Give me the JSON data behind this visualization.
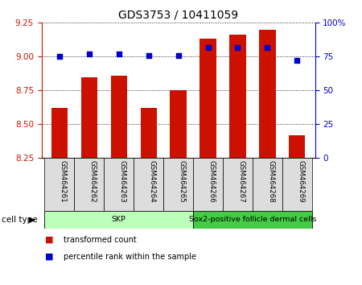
{
  "title": "GDS3753 / 10411059",
  "samples": [
    "GSM464261",
    "GSM464262",
    "GSM464263",
    "GSM464264",
    "GSM464265",
    "GSM464266",
    "GSM464267",
    "GSM464268",
    "GSM464269"
  ],
  "transformed_count": [
    8.62,
    8.85,
    8.86,
    8.62,
    8.75,
    9.13,
    9.16,
    9.2,
    8.42
  ],
  "percentile_rank": [
    75,
    77,
    77,
    76,
    76,
    82,
    82,
    82,
    72
  ],
  "ylim_left": [
    8.25,
    9.25
  ],
  "ylim_right": [
    0,
    100
  ],
  "yticks_left": [
    8.25,
    8.5,
    8.75,
    9.0,
    9.25
  ],
  "yticks_right": [
    0,
    25,
    50,
    75,
    100
  ],
  "ytick_labels_right": [
    "0",
    "25",
    "50",
    "75",
    "100%"
  ],
  "bar_color": "#cc1100",
  "dot_color": "#0000cc",
  "cell_types": [
    {
      "label": "SKP",
      "start": 0,
      "end": 4,
      "color": "#bbffbb"
    },
    {
      "label": "Sox2-positive follicle dermal cells",
      "start": 5,
      "end": 8,
      "color": "#44cc44"
    }
  ],
  "cell_type_label": "cell type",
  "legend_items": [
    {
      "color": "#cc1100",
      "label": "transformed count"
    },
    {
      "color": "#0000cc",
      "label": "percentile rank within the sample"
    }
  ],
  "title_fontsize": 10,
  "tick_fontsize": 7.5,
  "bar_width": 0.55,
  "dot_size": 18,
  "bg_color": "#dddddd"
}
